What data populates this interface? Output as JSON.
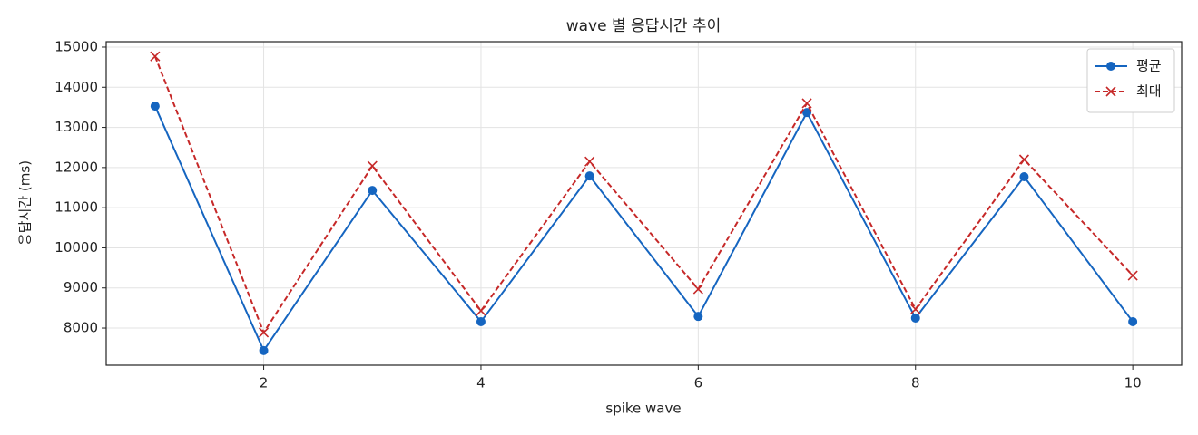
{
  "chart_data": {
    "type": "line",
    "title": "wave 별 응답시간 추이",
    "x_label": "spike wave",
    "y_label": "응답시간 (ms)",
    "x": [
      1,
      2,
      3,
      4,
      5,
      6,
      7,
      8,
      9,
      10
    ],
    "series": [
      {
        "name": "평균",
        "color": "#1565c0",
        "linestyle": "solid",
        "marker": "circle",
        "values": [
          13530,
          7440,
          11430,
          8160,
          11790,
          8290,
          13370,
          8250,
          11770,
          8160
        ]
      },
      {
        "name": "최대",
        "color": "#c62828",
        "linestyle": "dashed",
        "marker": "x",
        "values": [
          14770,
          7890,
          12040,
          8430,
          12150,
          8970,
          13600,
          8470,
          12200,
          9310
        ]
      }
    ],
    "xlim": [
      0.55,
      10.45
    ],
    "ylim": [
      7075,
      15135
    ],
    "xticks": [
      2,
      4,
      6,
      8,
      10
    ],
    "yticks": [
      8000,
      9000,
      10000,
      11000,
      12000,
      13000,
      14000,
      15000
    ],
    "grid": true,
    "legend": "upper right"
  }
}
